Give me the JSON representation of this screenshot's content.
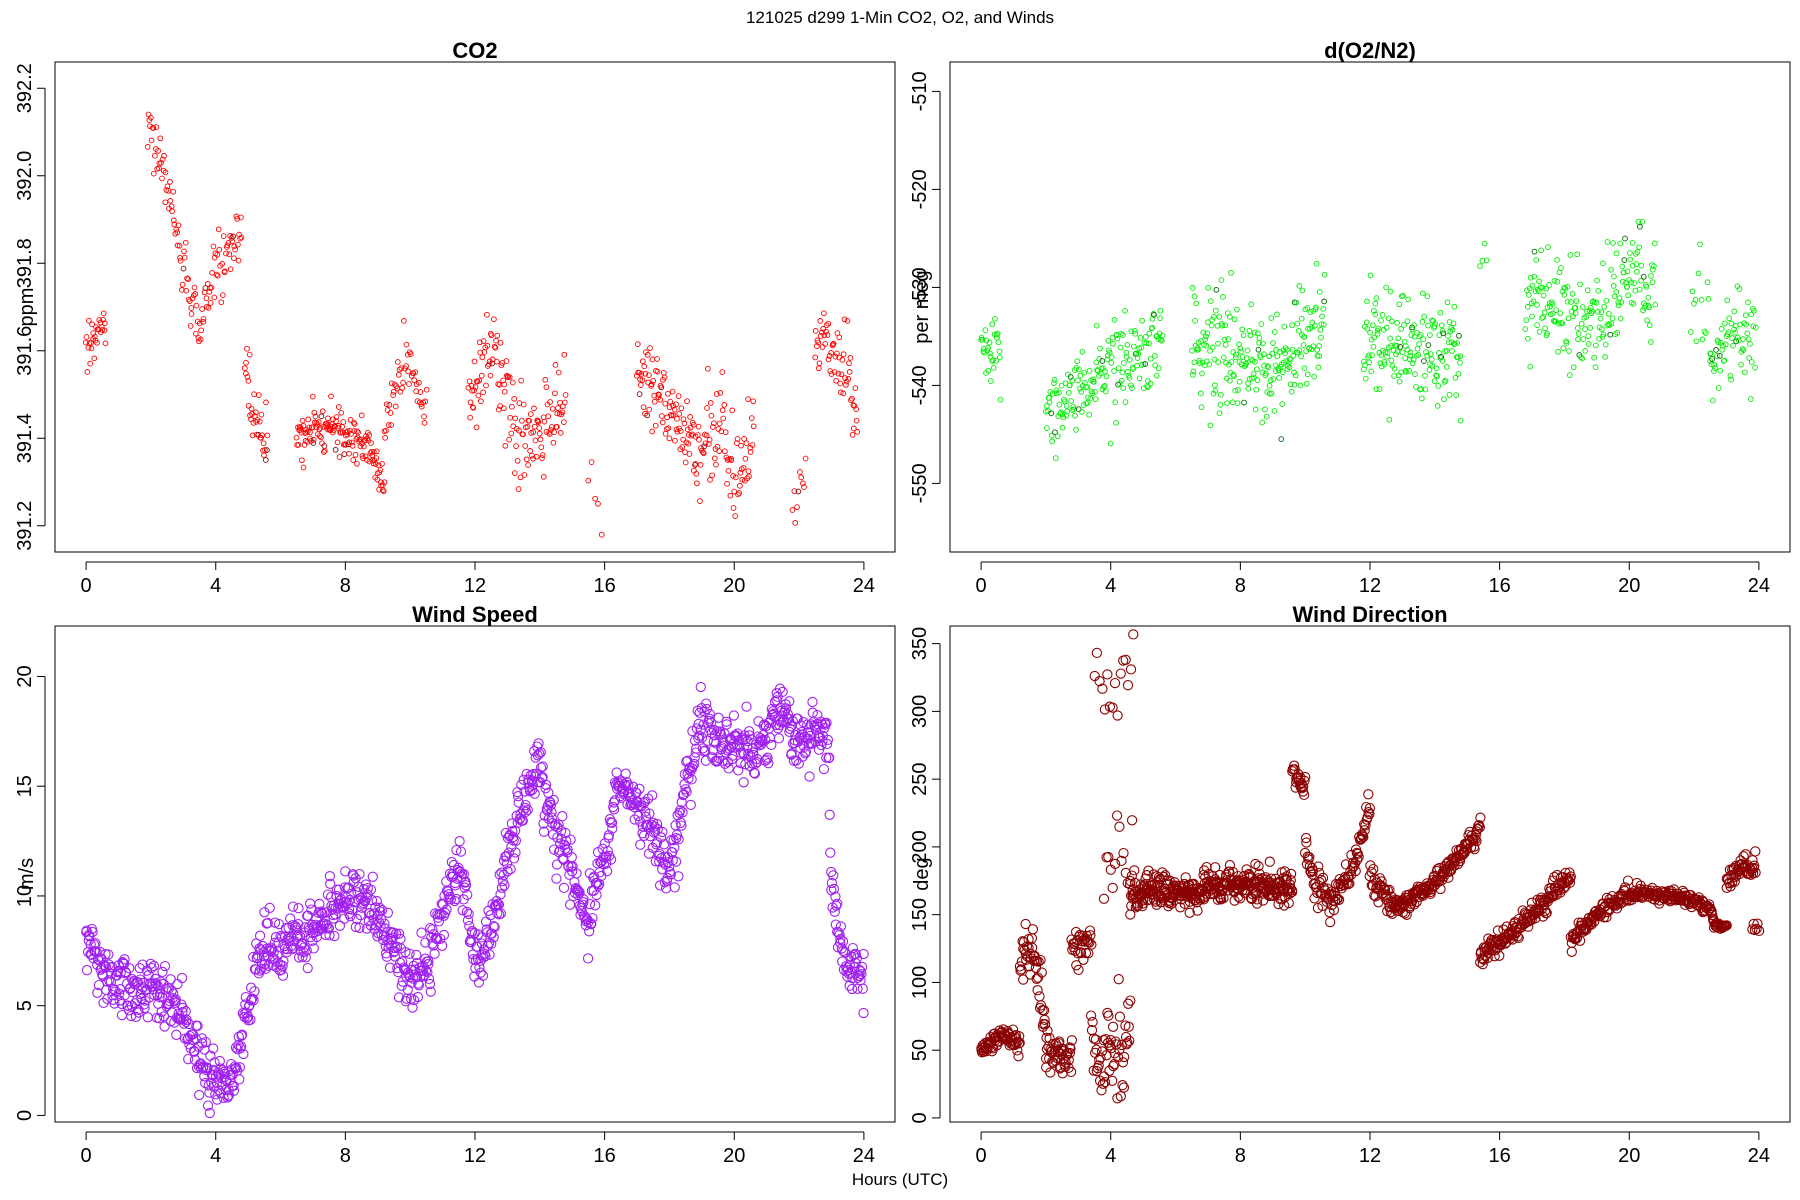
{
  "figure": {
    "title": "121025   d299   1-Min CO2, O2, and Winds",
    "xlabel": "Hours (UTC)"
  },
  "chart_data": [
    {
      "type": "scatter",
      "title": "CO2",
      "ylabel": "ppm",
      "color": "#ff0000",
      "marker_size": "small",
      "xlim": [
        -0.96,
        24.96
      ],
      "ylim": [
        391.14,
        392.26
      ],
      "xticks": [
        0,
        4,
        8,
        12,
        16,
        20,
        24
      ],
      "yticks": [
        391.2,
        391.4,
        391.6,
        391.8,
        392.0,
        392.2
      ],
      "ytick_labels": [
        "391.2",
        "391.4",
        "391.6",
        "391.8",
        "392.0",
        "392.2"
      ],
      "segments": [
        {
          "x0": 0.0,
          "x1": 0.6,
          "pts": [
            [
              0.0,
              391.6
            ],
            [
              0.3,
              391.64
            ],
            [
              0.6,
              391.66
            ]
          ],
          "spread": 0.05,
          "n": 30
        },
        {
          "x0": 1.9,
          "x1": 4.8,
          "pts": [
            [
              1.9,
              392.1
            ],
            [
              2.5,
              391.98
            ],
            [
              3.0,
              391.8
            ],
            [
              3.5,
              391.64
            ],
            [
              4.0,
              391.8
            ],
            [
              4.5,
              391.82
            ],
            [
              4.8,
              391.86
            ]
          ],
          "spread": 0.06,
          "n": 120
        },
        {
          "x0": 4.9,
          "x1": 5.6,
          "pts": [
            [
              4.9,
              391.55
            ],
            [
              5.2,
              391.45
            ],
            [
              5.6,
              391.36
            ]
          ],
          "spread": 0.07,
          "n": 35
        },
        {
          "x0": 6.5,
          "x1": 9.2,
          "pts": [
            [
              6.5,
              391.4
            ],
            [
              7.5,
              391.42
            ],
            [
              8.5,
              391.4
            ],
            [
              9.2,
              391.3
            ]
          ],
          "spread": 0.05,
          "n": 150
        },
        {
          "x0": 9.2,
          "x1": 10.5,
          "pts": [
            [
              9.2,
              391.4
            ],
            [
              9.8,
              391.58
            ],
            [
              10.5,
              391.48
            ]
          ],
          "spread": 0.06,
          "n": 50
        },
        {
          "x0": 11.8,
          "x1": 14.8,
          "pts": [
            [
              11.8,
              391.5
            ],
            [
              12.6,
              391.6
            ],
            [
              13.3,
              391.4
            ],
            [
              14.0,
              391.42
            ],
            [
              14.8,
              391.52
            ]
          ],
          "spread": 0.1,
          "n": 140
        },
        {
          "x0": 15.5,
          "x1": 15.9,
          "pts": [
            [
              15.5,
              391.35
            ],
            [
              15.9,
              391.2
            ]
          ],
          "spread": 0.06,
          "n": 5
        },
        {
          "x0": 17.0,
          "x1": 18.8,
          "pts": [
            [
              17.0,
              391.55
            ],
            [
              17.8,
              391.5
            ],
            [
              18.8,
              391.38
            ]
          ],
          "spread": 0.08,
          "n": 90
        },
        {
          "x0": 18.8,
          "x1": 20.6,
          "pts": [
            [
              18.8,
              391.35
            ],
            [
              19.6,
              391.45
            ],
            [
              20.0,
              391.3
            ],
            [
              20.6,
              391.42
            ]
          ],
          "spread": 0.1,
          "n": 80
        },
        {
          "x0": 21.8,
          "x1": 22.2,
          "pts": [
            [
              21.8,
              391.22
            ],
            [
              22.2,
              391.35
            ]
          ],
          "spread": 0.08,
          "n": 10
        },
        {
          "x0": 22.5,
          "x1": 23.8,
          "pts": [
            [
              22.5,
              391.6
            ],
            [
              23.0,
              391.62
            ],
            [
              23.5,
              391.55
            ],
            [
              23.8,
              391.48
            ]
          ],
          "spread": 0.09,
          "n": 60
        }
      ]
    },
    {
      "type": "scatter",
      "title": "d(O2/N2)",
      "ylabel": "per meg",
      "color": "#00ee00",
      "marker_size": "small",
      "xlim": [
        -0.96,
        24.96
      ],
      "ylim": [
        -557,
        -507
      ],
      "xticks": [
        0,
        4,
        8,
        12,
        16,
        20,
        24
      ],
      "yticks": [
        -550,
        -540,
        -530,
        -520,
        -510
      ],
      "ytick_labels": [
        "-550",
        "-540",
        "-530",
        "-520",
        "-510"
      ],
      "segments": [
        {
          "x0": 0.0,
          "x1": 0.6,
          "pts": [
            [
              0.0,
              -537
            ],
            [
              0.6,
              -535
            ]
          ],
          "spread": 3,
          "n": 30
        },
        {
          "x0": 2.0,
          "x1": 5.6,
          "pts": [
            [
              2.0,
              -543
            ],
            [
              3.0,
              -540
            ],
            [
              4.0,
              -538
            ],
            [
              5.0,
              -537
            ],
            [
              5.6,
              -535
            ]
          ],
          "spread": 4,
          "n": 180
        },
        {
          "x0": 6.5,
          "x1": 10.6,
          "pts": [
            [
              6.5,
              -536
            ],
            [
              8.0,
              -537
            ],
            [
              9.0,
              -538
            ],
            [
              10.6,
              -534
            ]
          ],
          "spread": 5,
          "n": 230
        },
        {
          "x0": 11.8,
          "x1": 14.8,
          "pts": [
            [
              11.8,
              -535
            ],
            [
              13.0,
              -536
            ],
            [
              14.8,
              -537
            ]
          ],
          "spread": 5,
          "n": 170
        },
        {
          "x0": 15.4,
          "x1": 15.6,
          "pts": [
            [
              15.4,
              -528
            ],
            [
              15.6,
              -527
            ]
          ],
          "spread": 2,
          "n": 4
        },
        {
          "x0": 16.8,
          "x1": 20.8,
          "pts": [
            [
              16.8,
              -531
            ],
            [
              18.0,
              -532
            ],
            [
              19.0,
              -534
            ],
            [
              20.0,
              -528
            ],
            [
              20.8,
              -531
            ]
          ],
          "spread": 5,
          "n": 200
        },
        {
          "x0": 21.9,
          "x1": 22.5,
          "pts": [
            [
              21.9,
              -530
            ],
            [
              22.5,
              -533
            ]
          ],
          "spread": 5,
          "n": 14
        },
        {
          "x0": 22.5,
          "x1": 23.9,
          "pts": [
            [
              22.5,
              -538
            ],
            [
              23.3,
              -535
            ],
            [
              23.9,
              -535
            ]
          ],
          "spread": 4,
          "n": 65
        }
      ]
    },
    {
      "type": "scatter",
      "title": "Wind Speed",
      "ylabel": "m/s",
      "color": "#a020f0",
      "marker_size": "large",
      "xlim": [
        -0.96,
        24.96
      ],
      "ylim": [
        -0.3,
        22.3
      ],
      "xticks": [
        0,
        4,
        8,
        12,
        16,
        20,
        24
      ],
      "yticks": [
        0,
        5,
        10,
        15,
        20
      ],
      "ytick_labels": [
        "0",
        "5",
        "10",
        "15",
        "20"
      ],
      "segments": [
        {
          "x0": 0.0,
          "x1": 24.0,
          "pts": [
            [
              0.0,
              8.0
            ],
            [
              0.5,
              6.5
            ],
            [
              1.0,
              6.0
            ],
            [
              1.5,
              5.5
            ],
            [
              2.0,
              6.0
            ],
            [
              2.5,
              5.5
            ],
            [
              3.0,
              4.5
            ],
            [
              3.5,
              2.5
            ],
            [
              4.0,
              1.8
            ],
            [
              4.5,
              1.5
            ],
            [
              5.0,
              5.0
            ],
            [
              5.5,
              8.0
            ],
            [
              6.0,
              7.5
            ],
            [
              7.0,
              8.5
            ],
            [
              8.0,
              10.0
            ],
            [
              9.0,
              9.0
            ],
            [
              9.5,
              7.5
            ],
            [
              10.0,
              6.0
            ],
            [
              10.5,
              7.0
            ],
            [
              11.0,
              9.0
            ],
            [
              11.5,
              12.0
            ],
            [
              12.0,
              7.0
            ],
            [
              12.5,
              8.0
            ],
            [
              13.0,
              12.0
            ],
            [
              13.5,
              14.0
            ],
            [
              14.0,
              16.0
            ],
            [
              14.5,
              13.0
            ],
            [
              15.0,
              11.0
            ],
            [
              15.5,
              9.0
            ],
            [
              16.0,
              12.0
            ],
            [
              16.5,
              15.0
            ],
            [
              17.0,
              14.0
            ],
            [
              17.5,
              13.0
            ],
            [
              18.0,
              11.0
            ],
            [
              18.5,
              15.0
            ],
            [
              19.0,
              18.0
            ],
            [
              19.5,
              17.0
            ],
            [
              20.0,
              17.0
            ],
            [
              20.5,
              16.5
            ],
            [
              21.0,
              17.5
            ],
            [
              21.5,
              18.5
            ],
            [
              22.0,
              17.0
            ],
            [
              22.5,
              17.5
            ],
            [
              22.9,
              17.0
            ],
            [
              23.0,
              10.0
            ],
            [
              23.5,
              7.0
            ],
            [
              24.0,
              6.0
            ]
          ],
          "spread": 1.2,
          "n": 1300
        }
      ]
    },
    {
      "type": "scatter",
      "title": "Wind Direction",
      "ylabel": "deg",
      "color": "#8b0000",
      "marker_size": "large",
      "xlim": [
        -0.96,
        24.96
      ],
      "ylim": [
        -3,
        363
      ],
      "xticks": [
        0,
        4,
        8,
        12,
        16,
        20,
        24
      ],
      "yticks": [
        0,
        50,
        100,
        150,
        200,
        250,
        300,
        350
      ],
      "ytick_labels": [
        "0",
        "50",
        "100",
        "150",
        "200",
        "250",
        "300",
        "350"
      ],
      "segments": [
        {
          "x0": 0.0,
          "x1": 1.2,
          "pts": [
            [
              0.0,
              50
            ],
            [
              0.6,
              62
            ],
            [
              1.2,
              55
            ]
          ],
          "spread": 6,
          "n": 70
        },
        {
          "x0": 1.2,
          "x1": 2.0,
          "pts": [
            [
              1.2,
              120
            ],
            [
              1.6,
              130
            ],
            [
              2.0,
              60
            ]
          ],
          "spread": 20,
          "n": 45
        },
        {
          "x0": 2.0,
          "x1": 2.8,
          "pts": [
            [
              2.0,
              50
            ],
            [
              2.8,
              45
            ]
          ],
          "spread": 12,
          "n": 45
        },
        {
          "x0": 2.8,
          "x1": 3.4,
          "pts": [
            [
              2.8,
              120
            ],
            [
              3.4,
              135
            ]
          ],
          "spread": 15,
          "n": 30
        },
        {
          "x0": 3.4,
          "x1": 4.6,
          "pts": [
            [
              3.4,
              50
            ],
            [
              4.0,
              40
            ],
            [
              4.6,
              60
            ]
          ],
          "spread": 30,
          "n": 55
        },
        {
          "x0": 3.5,
          "x1": 4.7,
          "pts": [
            [
              3.5,
              330
            ],
            [
              4.0,
              310
            ],
            [
              4.7,
              340
            ]
          ],
          "spread": 25,
          "n": 16
        },
        {
          "x0": 3.8,
          "x1": 4.8,
          "pts": [
            [
              3.8,
              150
            ],
            [
              4.3,
              220
            ],
            [
              4.8,
              150
            ]
          ],
          "spread": 40,
          "n": 16
        },
        {
          "x0": 4.6,
          "x1": 9.6,
          "pts": [
            [
              4.6,
              165
            ],
            [
              5.5,
              168
            ],
            [
              6.5,
              165
            ],
            [
              7.5,
              172
            ],
            [
              8.5,
              172
            ],
            [
              9.6,
              168
            ]
          ],
          "spread": 10,
          "n": 360
        },
        {
          "x0": 9.6,
          "x1": 10.0,
          "pts": [
            [
              9.6,
              255
            ],
            [
              10.0,
              245
            ]
          ],
          "spread": 8,
          "n": 22
        },
        {
          "x0": 10.0,
          "x1": 10.8,
          "pts": [
            [
              10.0,
              200
            ],
            [
              10.3,
              170
            ],
            [
              10.8,
              160
            ]
          ],
          "spread": 15,
          "n": 40
        },
        {
          "x0": 10.8,
          "x1": 12.0,
          "pts": [
            [
              10.8,
              160
            ],
            [
              11.4,
              180
            ],
            [
              12.0,
              230
            ]
          ],
          "spread": 10,
          "n": 60
        },
        {
          "x0": 12.0,
          "x1": 12.6,
          "pts": [
            [
              12.0,
              180
            ],
            [
              12.6,
              160
            ]
          ],
          "spread": 10,
          "n": 30
        },
        {
          "x0": 12.6,
          "x1": 15.4,
          "pts": [
            [
              12.6,
              155
            ],
            [
              13.5,
              165
            ],
            [
              14.5,
              185
            ],
            [
              15.4,
              215
            ]
          ],
          "spread": 7,
          "n": 160
        },
        {
          "x0": 15.4,
          "x1": 18.2,
          "pts": [
            [
              15.4,
              120
            ],
            [
              16.0,
              130
            ],
            [
              17.0,
              150
            ],
            [
              18.2,
              180
            ]
          ],
          "spread": 7,
          "n": 160
        },
        {
          "x0": 18.2,
          "x1": 22.6,
          "pts": [
            [
              18.2,
              130
            ],
            [
              19.0,
              150
            ],
            [
              20.0,
              165
            ],
            [
              21.0,
              165
            ],
            [
              22.0,
              162
            ],
            [
              22.6,
              150
            ]
          ],
          "spread": 5,
          "n": 240
        },
        {
          "x0": 22.6,
          "x1": 23.0,
          "pts": [
            [
              22.6,
              142
            ],
            [
              23.0,
              142
            ]
          ],
          "spread": 2,
          "n": 20
        },
        {
          "x0": 23.0,
          "x1": 23.9,
          "pts": [
            [
              23.0,
              175
            ],
            [
              23.5,
              185
            ],
            [
              23.9,
              185
            ]
          ],
          "spread": 8,
          "n": 50
        },
        {
          "x0": 23.8,
          "x1": 24.0,
          "pts": [
            [
              23.8,
              140
            ],
            [
              24.0,
              140
            ]
          ],
          "spread": 3,
          "n": 6
        }
      ]
    }
  ]
}
